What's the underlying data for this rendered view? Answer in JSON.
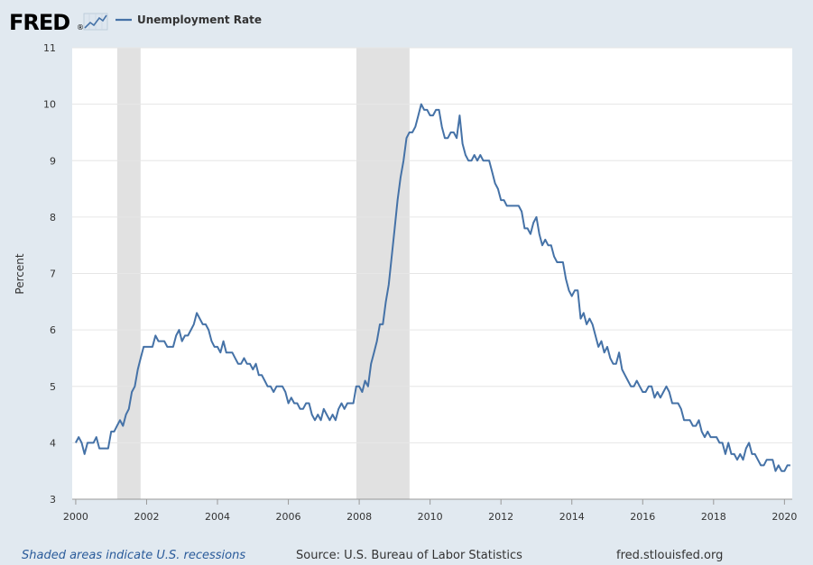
{
  "logo": {
    "text": "FRED",
    "reg": "®"
  },
  "colors": {
    "series": "#4572a7",
    "recession": "#e1e1e1",
    "plot_bg": "#ffffff",
    "page_bg": "#e1e9f0"
  },
  "footer": {
    "note": "Shaded areas indicate U.S. recessions",
    "source": "Source: U.S. Bureau of Labor Statistics",
    "site": "fred.stlouisfed.org"
  },
  "chart_data": {
    "type": "line",
    "title": "",
    "xlabel": "",
    "ylabel": "Percent",
    "xlim": [
      1999.9,
      2020.22
    ],
    "ylim": [
      3,
      11
    ],
    "grid": true,
    "legend": "top-left",
    "x_ticks": [
      "2000",
      "2002",
      "2004",
      "2006",
      "2008",
      "2010",
      "2012",
      "2014",
      "2016",
      "2018",
      "2020"
    ],
    "y_ticks": [
      "3",
      "4",
      "5",
      "6",
      "7",
      "8",
      "9",
      "10",
      "11"
    ],
    "recessions": [
      [
        2001.17,
        2001.83
      ],
      [
        2007.92,
        2009.42
      ]
    ],
    "series": [
      {
        "name": "Unemployment Rate",
        "start": "2000-01",
        "frequency": "monthly",
        "values": [
          4.0,
          4.1,
          4.0,
          3.8,
          4.0,
          4.0,
          4.0,
          4.1,
          3.9,
          3.9,
          3.9,
          3.9,
          4.2,
          4.2,
          4.3,
          4.4,
          4.3,
          4.5,
          4.6,
          4.9,
          5.0,
          5.3,
          5.5,
          5.7,
          5.7,
          5.7,
          5.7,
          5.9,
          5.8,
          5.8,
          5.8,
          5.7,
          5.7,
          5.7,
          5.9,
          6.0,
          5.8,
          5.9,
          5.9,
          6.0,
          6.1,
          6.3,
          6.2,
          6.1,
          6.1,
          6.0,
          5.8,
          5.7,
          5.7,
          5.6,
          5.8,
          5.6,
          5.6,
          5.6,
          5.5,
          5.4,
          5.4,
          5.5,
          5.4,
          5.4,
          5.3,
          5.4,
          5.2,
          5.2,
          5.1,
          5.0,
          5.0,
          4.9,
          5.0,
          5.0,
          5.0,
          4.9,
          4.7,
          4.8,
          4.7,
          4.7,
          4.6,
          4.6,
          4.7,
          4.7,
          4.5,
          4.4,
          4.5,
          4.4,
          4.6,
          4.5,
          4.4,
          4.5,
          4.4,
          4.6,
          4.7,
          4.6,
          4.7,
          4.7,
          4.7,
          5.0,
          5.0,
          4.9,
          5.1,
          5.0,
          5.4,
          5.6,
          5.8,
          6.1,
          6.1,
          6.5,
          6.8,
          7.3,
          7.8,
          8.3,
          8.7,
          9.0,
          9.4,
          9.5,
          9.5,
          9.6,
          9.8,
          10.0,
          9.9,
          9.9,
          9.8,
          9.8,
          9.9,
          9.9,
          9.6,
          9.4,
          9.4,
          9.5,
          9.5,
          9.4,
          9.8,
          9.3,
          9.1,
          9.0,
          9.0,
          9.1,
          9.0,
          9.1,
          9.0,
          9.0,
          9.0,
          8.8,
          8.6,
          8.5,
          8.3,
          8.3,
          8.2,
          8.2,
          8.2,
          8.2,
          8.2,
          8.1,
          7.8,
          7.8,
          7.7,
          7.9,
          8.0,
          7.7,
          7.5,
          7.6,
          7.5,
          7.5,
          7.3,
          7.2,
          7.2,
          7.2,
          6.9,
          6.7,
          6.6,
          6.7,
          6.7,
          6.2,
          6.3,
          6.1,
          6.2,
          6.1,
          5.9,
          5.7,
          5.8,
          5.6,
          5.7,
          5.5,
          5.4,
          5.4,
          5.6,
          5.3,
          5.2,
          5.1,
          5.0,
          5.0,
          5.1,
          5.0,
          4.9,
          4.9,
          5.0,
          5.0,
          4.8,
          4.9,
          4.8,
          4.9,
          5.0,
          4.9,
          4.7,
          4.7,
          4.7,
          4.6,
          4.4,
          4.4,
          4.4,
          4.3,
          4.3,
          4.4,
          4.2,
          4.1,
          4.2,
          4.1,
          4.1,
          4.1,
          4.0,
          4.0,
          3.8,
          4.0,
          3.8,
          3.8,
          3.7,
          3.8,
          3.7,
          3.9,
          4.0,
          3.8,
          3.8,
          3.7,
          3.6,
          3.6,
          3.7,
          3.7,
          3.7,
          3.5,
          3.6,
          3.5,
          3.5,
          3.6,
          3.6
        ]
      }
    ]
  }
}
